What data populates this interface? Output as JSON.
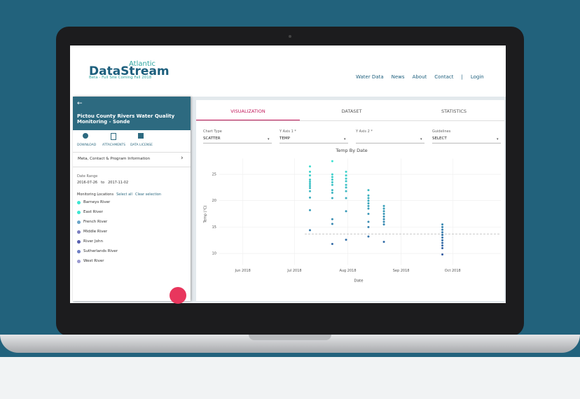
{
  "header": {
    "brand_small": "Atlantic",
    "brand": "DataStream",
    "tagline": "Beta - Full Site Coming Fall 2018"
  },
  "nav": [
    "Water Data",
    "News",
    "About",
    "Contact",
    "|",
    "Login"
  ],
  "sidebar": {
    "title": "Pictou County Rivers Water Quality Monitoring - Sonde",
    "actions": [
      "DOWNLOAD",
      "ATTACHMENTS",
      "DATA LICENSE"
    ],
    "meta_link": "Meta, Contact & Program Information",
    "date_range_label": "Date Range",
    "date_from": "2016-07-26",
    "date_sep": "to",
    "date_to": "2017-11-02",
    "locations_label": "Monitoring Locations",
    "select_all": "Select all",
    "clear": "Clear selection",
    "locations": [
      "Barneys River",
      "East River",
      "French River",
      "Middle River",
      "River John",
      "Sutherlands River",
      "West River"
    ]
  },
  "tabs": [
    "VISUALIZATION",
    "DATASET",
    "STATISTICS"
  ],
  "controls": [
    {
      "label": "Chart Type",
      "value": "SCATTER"
    },
    {
      "label": "Y Axis 1 *",
      "value": "TEMP"
    },
    {
      "label": "Y Axis 2 *"
    },
    {
      "label": "Guidelines",
      "value": "SELECT"
    }
  ],
  "chart_data": {
    "type": "scatter",
    "title": "Temp By Date",
    "x_label": "Date",
    "y_label": "Temp (°C)",
    "x": [
      191,
      191,
      191,
      191,
      191,
      191,
      191,
      191,
      191,
      191,
      191,
      191,
      204,
      204,
      204,
      204,
      204,
      204,
      204,
      204,
      204,
      204,
      204,
      204,
      212,
      212,
      212,
      212,
      212,
      212,
      212,
      212,
      212,
      212,
      225,
      225,
      225,
      225,
      225,
      225,
      225,
      225,
      225,
      225,
      225,
      234,
      234,
      234,
      234,
      234,
      234,
      234,
      234,
      234,
      268,
      268,
      268,
      268,
      268,
      268,
      268,
      268,
      268,
      268,
      268
    ],
    "values": [
      26.5,
      25.5,
      24.8,
      24,
      23.6,
      23.2,
      22.8,
      22.4,
      21.8,
      20.6,
      18.2,
      14.4,
      27.5,
      25,
      24.5,
      24,
      23.5,
      23,
      22,
      21.5,
      20.5,
      16.5,
      15.6,
      11.8,
      25.5,
      24.8,
      24.2,
      23.7,
      23,
      22.5,
      21.8,
      20.5,
      18,
      12.6,
      22,
      21,
      20.5,
      20,
      19.5,
      19,
      18.5,
      17.5,
      16,
      15,
      13.2,
      19,
      18.5,
      18,
      17.5,
      17,
      16.5,
      16,
      15.5,
      12.2,
      15.5,
      15,
      14.5,
      14,
      13.5,
      13,
      12.5,
      12,
      11.5,
      11,
      9.8
    ],
    "colors": [
      "#3ee6d2",
      "#33469a"
    ],
    "reference_line": 13.7,
    "xlim": [
      135,
      302
    ],
    "xticks": [
      {
        "value": 152,
        "label": "Jun 2018"
      },
      {
        "value": 182,
        "label": "Jul 2018"
      },
      {
        "value": 213,
        "label": "Aug 2018"
      },
      {
        "value": 244,
        "label": "Sep 2018"
      },
      {
        "value": 274,
        "label": "Oct 2018"
      }
    ],
    "ylim": [
      7,
      28
    ],
    "yticks": [
      10,
      15,
      20,
      25
    ],
    "grid": true
  }
}
